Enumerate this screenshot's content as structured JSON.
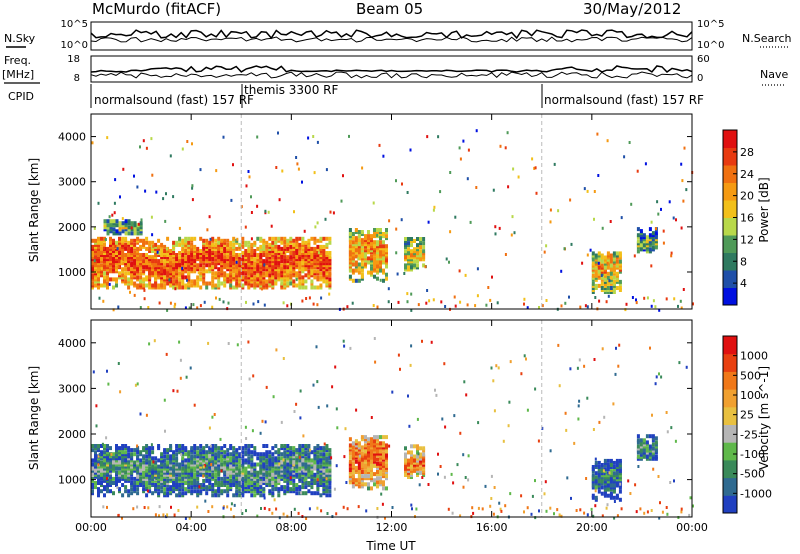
{
  "header": {
    "station": "McMurdo (fitACF)",
    "beam": "Beam 05",
    "date": "30/May/2012"
  },
  "left_labels": {
    "nsky": "N.Sky",
    "freq": "Freq.",
    "freq_unit": "[MHz]",
    "cpid": "CPID"
  },
  "right_labels": {
    "nsearch": "N.Search",
    "nave": "Nave"
  },
  "noise_axis": {
    "left_ticks": [
      "10^5",
      "10^0"
    ],
    "right_ticks": [
      "10^5",
      "10^0"
    ]
  },
  "freq_axis": {
    "left_ticks": [
      "18",
      "8"
    ],
    "right_ticks": [
      "60",
      "0"
    ]
  },
  "cpid_segments": [
    {
      "label": "normalsound (fast) 157 RF",
      "start_hour": 0
    },
    {
      "label": "themis 3300 RF",
      "start_hour": 6
    },
    {
      "label": "normalsound (fast) 157 RF",
      "start_hour": 18
    }
  ],
  "colors": {
    "power": [
      "#0010e0",
      "#1f4fa8",
      "#2f7a60",
      "#4f9a58",
      "#b8d84a",
      "#f2c01a",
      "#f59a12",
      "#f07010",
      "#e83a10",
      "#e01010"
    ],
    "velocity": [
      "#2040c0",
      "#2f6a90",
      "#3a8a5a",
      "#5fb84a",
      "#b5b5b5",
      "#e8c040",
      "#f0a030",
      "#f07818",
      "#e84010",
      "#e01010"
    ]
  },
  "chart_data": [
    {
      "type": "heatmap",
      "name": "power",
      "ylabel": "Slant Range [km]",
      "xlabel": "Time UT",
      "xticks": [
        "00:00",
        "04:00",
        "08:00",
        "12:00",
        "16:00",
        "20:00",
        "00:00"
      ],
      "xlim": [
        0,
        24
      ],
      "ylim": [
        180,
        4500
      ],
      "yticks": [
        1000,
        2000,
        3000,
        4000
      ],
      "colorbar_label": "Power [dB]",
      "colorbar_ticks": [
        4,
        8,
        12,
        16,
        20,
        24,
        28
      ],
      "echo_regions": [
        {
          "t0": 0.0,
          "t1": 9.5,
          "r0": 700,
          "r1": 1800,
          "level": 0.85
        },
        {
          "t0": 0.5,
          "t1": 2.0,
          "r0": 1900,
          "r1": 2200,
          "level": 0.45
        },
        {
          "t0": 10.3,
          "t1": 11.8,
          "r0": 850,
          "r1": 2000,
          "level": 0.7
        },
        {
          "t0": 12.5,
          "t1": 13.3,
          "r0": 1100,
          "r1": 1800,
          "level": 0.6
        },
        {
          "t0": 20.0,
          "t1": 21.2,
          "r0": 600,
          "r1": 1500,
          "level": 0.65
        },
        {
          "t0": 21.8,
          "t1": 22.6,
          "r0": 1500,
          "r1": 2000,
          "level": 0.4
        }
      ]
    },
    {
      "type": "heatmap",
      "name": "velocity",
      "ylabel": "Slant Range [km]",
      "xlabel": "Time UT",
      "xticks": [
        "00:00",
        "04:00",
        "08:00",
        "12:00",
        "16:00",
        "20:00",
        "00:00"
      ],
      "xlim": [
        0,
        24
      ],
      "ylim": [
        180,
        4500
      ],
      "yticks": [
        1000,
        2000,
        3000,
        4000
      ],
      "colorbar_label": "Velocity [m s^-1]",
      "colorbar_ticks": [
        1000,
        500,
        100,
        25,
        -25,
        -100,
        -500,
        -1000
      ],
      "echo_regions": [
        {
          "t0": 0.0,
          "t1": 9.5,
          "r0": 700,
          "r1": 1800,
          "level": 0.3
        },
        {
          "t0": 10.3,
          "t1": 11.8,
          "r0": 850,
          "r1": 2000,
          "level": 0.8
        },
        {
          "t0": 12.5,
          "t1": 13.3,
          "r0": 1100,
          "r1": 1800,
          "level": 0.75
        },
        {
          "t0": 20.0,
          "t1": 21.2,
          "r0": 600,
          "r1": 1500,
          "level": 0.2
        },
        {
          "t0": 21.8,
          "t1": 22.6,
          "r0": 1500,
          "r1": 2000,
          "level": 0.3
        }
      ]
    }
  ]
}
